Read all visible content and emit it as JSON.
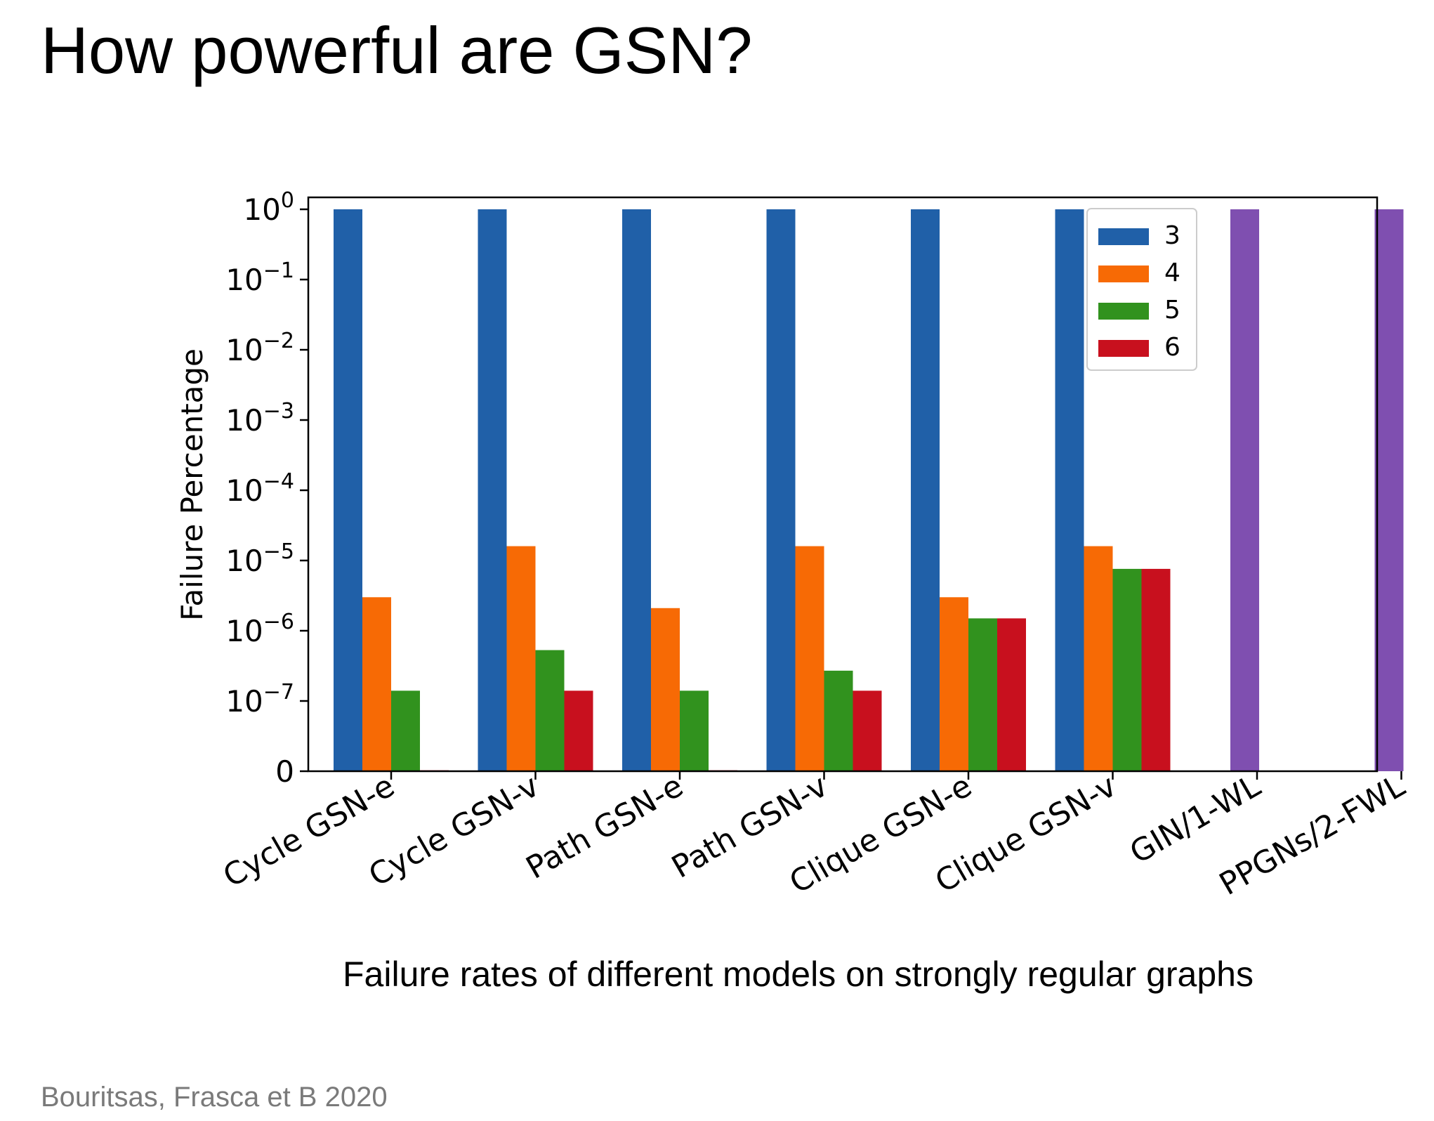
{
  "slide": {
    "title": "How powerful are GSN?",
    "caption": "Failure rates of different models on strongly regular graphs",
    "citation": "Bouritsas, Frasca et B 2020"
  },
  "colors": {
    "series_3": "#2060a8",
    "series_4": "#f76a05",
    "series_5": "#31921e",
    "series_6": "#c8101e",
    "baseline": "#7f4fb0"
  },
  "chart_data": {
    "type": "bar",
    "scale": "symlog",
    "ylabel": "Failure Percentage",
    "xlabel": "",
    "ylim": [
      0,
      1
    ],
    "yticks": [
      {
        "label": "10",
        "exp": "0"
      },
      {
        "label": "10",
        "exp": "−1"
      },
      {
        "label": "10",
        "exp": "−2"
      },
      {
        "label": "10",
        "exp": "−3"
      },
      {
        "label": "10",
        "exp": "−4"
      },
      {
        "label": "10",
        "exp": "−5"
      },
      {
        "label": "10",
        "exp": "−6"
      },
      {
        "label": "10",
        "exp": "−7"
      },
      {
        "label": "0",
        "exp": ""
      }
    ],
    "categories": [
      "Cycle GSN-e",
      "Cycle GSN-v",
      "Path GSN-e",
      "Path GSN-v",
      "Clique GSN-e",
      "Clique GSN-v",
      "GIN/1-WL",
      "PPGNs/2-FWL"
    ],
    "series": [
      {
        "name": "3",
        "values": [
          1,
          1,
          1,
          1,
          1,
          1,
          null,
          null
        ]
      },
      {
        "name": "4",
        "values": [
          3e-06,
          1.6e-05,
          2.1e-06,
          1.6e-05,
          3e-06,
          1.6e-05,
          null,
          null
        ]
      },
      {
        "name": "5",
        "values": [
          1.4e-07,
          5.3e-07,
          1.4e-07,
          2.7e-07,
          1.5e-06,
          7.6e-06,
          null,
          null
        ]
      },
      {
        "name": "6",
        "values": [
          5e-09,
          1.4e-07,
          5e-09,
          1.4e-07,
          1.5e-06,
          7.6e-06,
          null,
          null
        ]
      }
    ],
    "baseline_values": [
      null,
      null,
      null,
      null,
      null,
      null,
      1,
      1
    ],
    "legend": {
      "position": "top-right",
      "entries": [
        "3",
        "4",
        "5",
        "6"
      ]
    },
    "grid": false
  }
}
